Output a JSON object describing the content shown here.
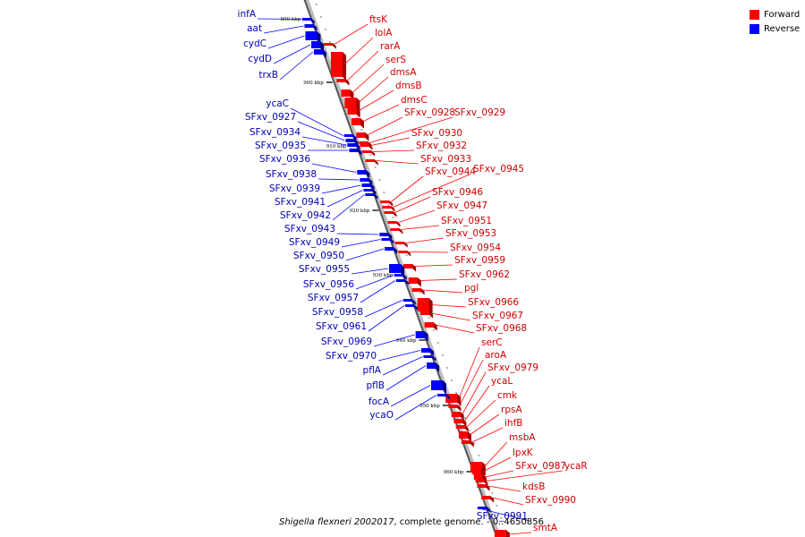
{
  "legend": {
    "forward": {
      "label": "Forward",
      "color": "#ff0000"
    },
    "reverse": {
      "label": "Reverse",
      "color": "#0000ff"
    }
  },
  "caption": {
    "organism": "Shigella flexneri 2002017",
    "rest": ", complete genome. - 0..4650856"
  },
  "ticks": [
    "890 kbp",
    "900 kbp",
    "910 kbp",
    "920 kbp",
    "930 kbp",
    "940 kbp",
    "950 kbp",
    "960 kbp"
  ],
  "features": [
    {
      "name": "ftsK",
      "strand": "forward"
    },
    {
      "name": "lolA",
      "strand": "forward"
    },
    {
      "name": "rarA",
      "strand": "forward"
    },
    {
      "name": "serS",
      "strand": "forward"
    },
    {
      "name": "dmsA",
      "strand": "forward"
    },
    {
      "name": "dmsB",
      "strand": "forward"
    },
    {
      "name": "dmsC",
      "strand": "forward"
    },
    {
      "name": "SFxv_0928",
      "strand": "forward"
    },
    {
      "name": "SFxv_0929",
      "strand": "forward"
    },
    {
      "name": "SFxv_0930",
      "strand": "forward"
    },
    {
      "name": "SFxv_0932",
      "strand": "forward"
    },
    {
      "name": "SFxv_0933",
      "strand": "forward"
    },
    {
      "name": "SFxv_0944",
      "strand": "forward"
    },
    {
      "name": "SFxv_0945",
      "strand": "forward"
    },
    {
      "name": "SFxv_0946",
      "strand": "forward"
    },
    {
      "name": "SFxv_0947",
      "strand": "forward"
    },
    {
      "name": "SFxv_0951",
      "strand": "forward"
    },
    {
      "name": "SFxv_0953",
      "strand": "forward"
    },
    {
      "name": "SFxv_0954",
      "strand": "forward"
    },
    {
      "name": "SFxv_0959",
      "strand": "forward"
    },
    {
      "name": "SFxv_0962",
      "strand": "forward"
    },
    {
      "name": "pgl",
      "strand": "forward"
    },
    {
      "name": "SFxv_0966",
      "strand": "forward"
    },
    {
      "name": "SFxv_0967",
      "strand": "forward"
    },
    {
      "name": "SFxv_0968",
      "strand": "forward"
    },
    {
      "name": "serC",
      "strand": "forward"
    },
    {
      "name": "aroA",
      "strand": "forward"
    },
    {
      "name": "SFxv_0979",
      "strand": "forward"
    },
    {
      "name": "ycaL",
      "strand": "forward"
    },
    {
      "name": "cmk",
      "strand": "forward"
    },
    {
      "name": "rpsA",
      "strand": "forward"
    },
    {
      "name": "ihfB",
      "strand": "forward"
    },
    {
      "name": "msbA",
      "strand": "forward"
    },
    {
      "name": "lpxK",
      "strand": "forward"
    },
    {
      "name": "SFxv_0987",
      "strand": "forward"
    },
    {
      "name": "ycaR",
      "strand": "forward"
    },
    {
      "name": "kdsB",
      "strand": "forward"
    },
    {
      "name": "SFxv_0990",
      "strand": "forward"
    },
    {
      "name": "smtA",
      "strand": "forward"
    },
    {
      "name": "infA",
      "strand": "reverse"
    },
    {
      "name": "aat",
      "strand": "reverse"
    },
    {
      "name": "cydC",
      "strand": "reverse"
    },
    {
      "name": "cydD",
      "strand": "reverse"
    },
    {
      "name": "trxB",
      "strand": "reverse"
    },
    {
      "name": "ycaC",
      "strand": "reverse"
    },
    {
      "name": "SFxv_0927",
      "strand": "reverse"
    },
    {
      "name": "SFxv_0934",
      "strand": "reverse"
    },
    {
      "name": "SFxv_0935",
      "strand": "reverse"
    },
    {
      "name": "SFxv_0936",
      "strand": "reverse"
    },
    {
      "name": "SFxv_0938",
      "strand": "reverse"
    },
    {
      "name": "SFxv_0939",
      "strand": "reverse"
    },
    {
      "name": "SFxv_0941",
      "strand": "reverse"
    },
    {
      "name": "SFxv_0942",
      "strand": "reverse"
    },
    {
      "name": "SFxv_0943",
      "strand": "reverse"
    },
    {
      "name": "SFxv_0949",
      "strand": "reverse"
    },
    {
      "name": "SFxv_0950",
      "strand": "reverse"
    },
    {
      "name": "SFxv_0955",
      "strand": "reverse"
    },
    {
      "name": "SFxv_0956",
      "strand": "reverse"
    },
    {
      "name": "SFxv_0957",
      "strand": "reverse"
    },
    {
      "name": "SFxv_0958",
      "strand": "reverse"
    },
    {
      "name": "SFxv_0961",
      "strand": "reverse"
    },
    {
      "name": "SFxv_0969",
      "strand": "reverse"
    },
    {
      "name": "SFxv_0970",
      "strand": "reverse"
    },
    {
      "name": "pflA",
      "strand": "reverse"
    },
    {
      "name": "pflB",
      "strand": "reverse"
    },
    {
      "name": "focA",
      "strand": "reverse"
    },
    {
      "name": "ycaO",
      "strand": "reverse"
    },
    {
      "name": "SFxv_0991",
      "strand": "reverse"
    }
  ]
}
